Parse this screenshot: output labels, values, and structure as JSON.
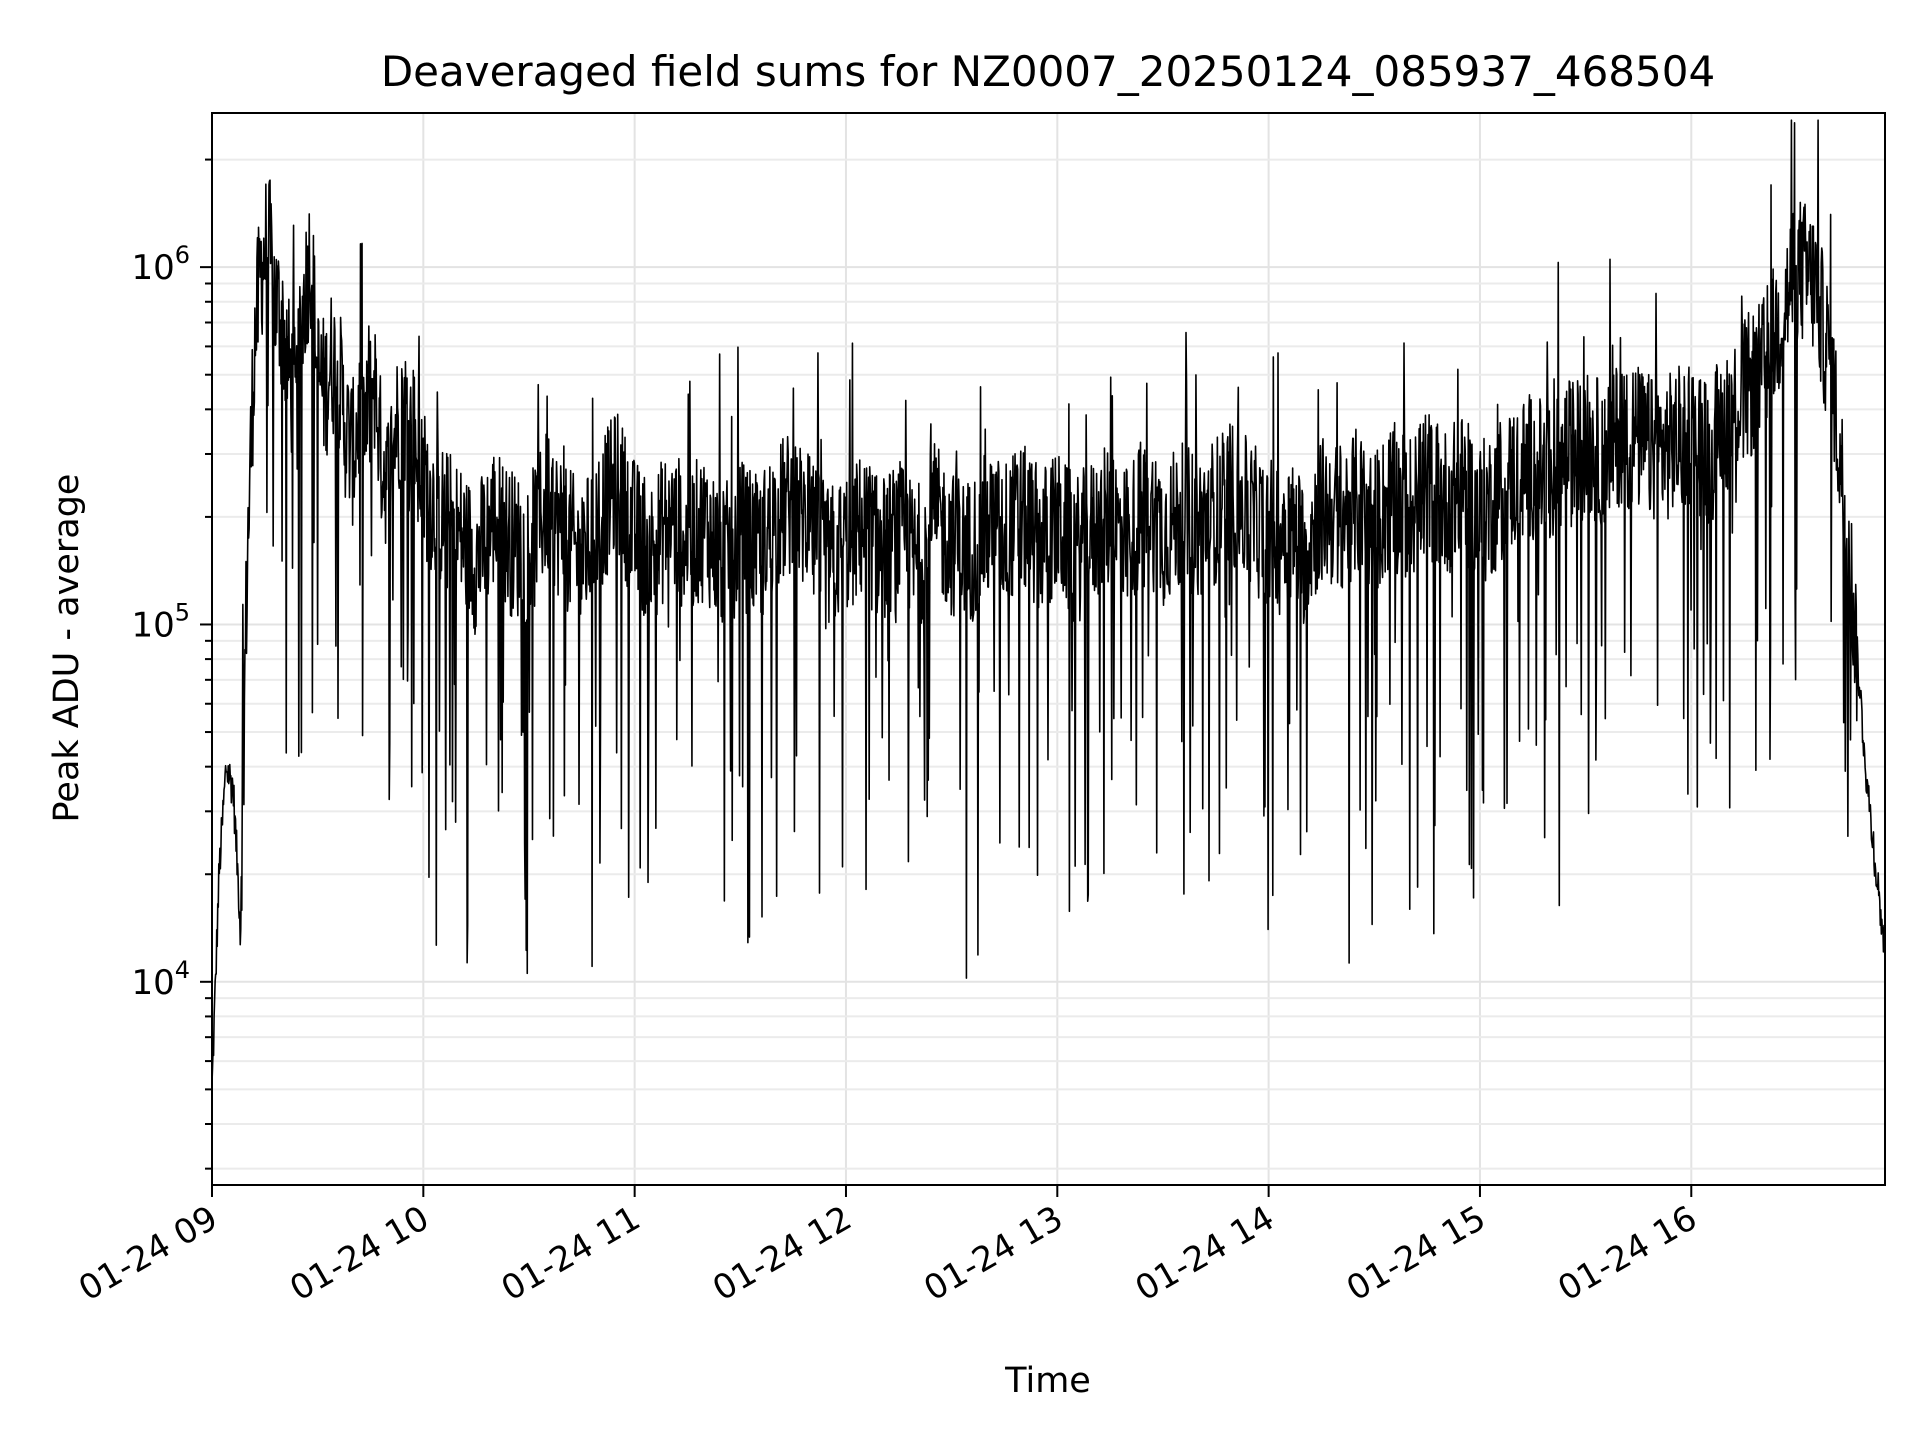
{
  "chart_data": {
    "type": "line",
    "title": "Deaveraged field sums for NZ0007_20250124_085937_468504",
    "xlabel": "Time",
    "ylabel": "Peak ADU - average",
    "yscale": "log",
    "ylim": [
      2700,
      2700000
    ],
    "xlim": [
      "01-24 09:00",
      "01-24 16:55"
    ],
    "x_ticks": [
      "01-24 09",
      "01-24 10",
      "01-24 11",
      "01-24 12",
      "01-24 13",
      "01-24 14",
      "01-24 15",
      "01-24 16"
    ],
    "y_ticks": [
      {
        "base": "10",
        "exp": "4",
        "value": 10000
      },
      {
        "base": "10",
        "exp": "5",
        "value": 100000
      },
      {
        "base": "10",
        "exp": "6",
        "value": 1000000
      }
    ],
    "grid": true,
    "line_color": "#000000",
    "series": [
      {
        "x": [
          "09:00",
          "09:02",
          "09:04",
          "09:06",
          "09:08",
          "09:10",
          "09:12",
          "09:14",
          "09:16",
          "09:18",
          "09:20",
          "09:22",
          "09:24",
          "09:26",
          "09:28",
          "09:30",
          "09:32",
          "09:34",
          "09:36",
          "09:38",
          "09:40",
          "09:42",
          "09:44",
          "09:46",
          "09:48",
          "09:50",
          "09:52",
          "09:54",
          "09:56",
          "09:58",
          "10:00",
          "10:05",
          "10:10",
          "10:15",
          "10:20",
          "10:25",
          "10:30",
          "10:35",
          "10:40",
          "10:45",
          "10:50",
          "10:55",
          "11:00",
          "11:05",
          "11:10",
          "11:15",
          "11:20",
          "11:25",
          "11:30",
          "11:35",
          "11:40",
          "11:45",
          "11:50",
          "11:55",
          "12:00",
          "12:05",
          "12:10",
          "12:15",
          "12:20",
          "12:25",
          "12:30",
          "12:35",
          "12:40",
          "12:45",
          "12:50",
          "12:55",
          "13:00",
          "13:05",
          "13:10",
          "13:15",
          "13:20",
          "13:25",
          "13:30",
          "13:35",
          "13:40",
          "13:45",
          "13:50",
          "13:55",
          "14:00",
          "14:05",
          "14:10",
          "14:15",
          "14:20",
          "14:25",
          "14:30",
          "14:35",
          "14:40",
          "14:45",
          "14:50",
          "14:55",
          "15:00",
          "15:05",
          "15:10",
          "15:15",
          "15:20",
          "15:25",
          "15:30",
          "15:35",
          "15:40",
          "15:45",
          "15:50",
          "15:55",
          "16:00",
          "16:05",
          "16:10",
          "16:15",
          "16:20",
          "16:25",
          "16:30",
          "16:35",
          "16:40",
          "16:45",
          "16:50",
          "16:55"
        ],
        "y": [
          5000,
          20000,
          40000,
          35000,
          15000,
          150000,
          600000,
          1000000,
          1200000,
          800000,
          700000,
          500000,
          400000,
          800000,
          1100000,
          500000,
          450000,
          550000,
          500000,
          350000,
          300000,
          400000,
          350000,
          500000,
          300000,
          250000,
          350000,
          400000,
          380000,
          320000,
          250000,
          200000,
          180000,
          150000,
          200000,
          170000,
          160000,
          220000,
          180000,
          150000,
          200000,
          250000,
          180000,
          160000,
          200000,
          170000,
          190000,
          150000,
          180000,
          160000,
          200000,
          220000,
          180000,
          150000,
          170000,
          190000,
          160000,
          180000,
          150000,
          200000,
          170000,
          160000,
          190000,
          180000,
          200000,
          170000,
          190000,
          160000,
          180000,
          200000,
          170000,
          220000,
          180000,
          200000,
          190000,
          210000,
          230000,
          200000,
          180000,
          190000,
          160000,
          210000,
          200000,
          220000,
          190000,
          230000,
          210000,
          250000,
          220000,
          240000,
          200000,
          230000,
          260000,
          280000,
          250000,
          300000,
          320000,
          300000,
          350000,
          330000,
          300000,
          320000,
          350000,
          300000,
          380000,
          450000,
          500000,
          700000,
          1000000,
          900000,
          500000,
          150000,
          35000,
          12000
        ]
      }
    ]
  }
}
